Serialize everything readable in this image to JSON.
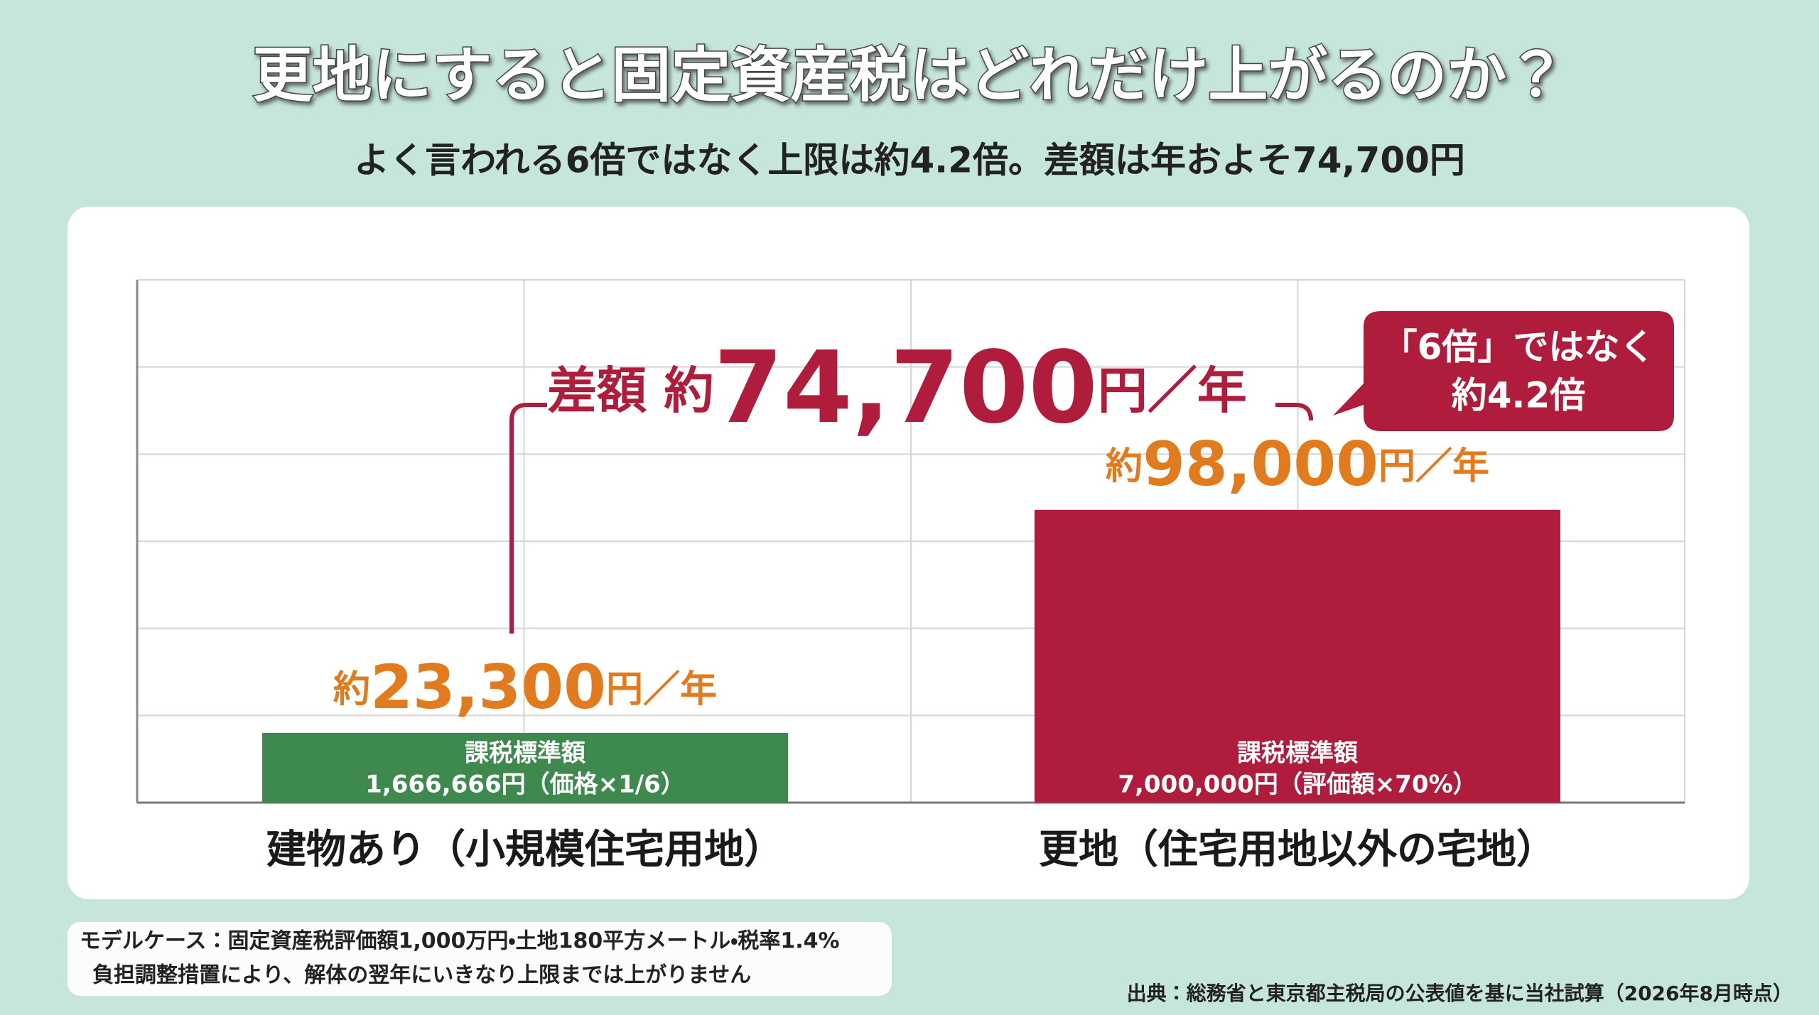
{
  "chart_data": {
    "type": "bar",
    "title": "更地にすると固定資産税はどれだけ上がるのか？",
    "subtitle": "よく言われる6倍ではなく上限は約4.2倍。差額は年およそ74,700円",
    "categories": [
      "建物あり（小規模住宅用地）",
      "更地（住宅用地以外の宅地）"
    ],
    "values": [
      23300,
      98000
    ],
    "value_labels": [
      "約23,300円／年",
      "約98,000円／年"
    ],
    "colors": [
      "#3e8a4e",
      "#b01c3c"
    ],
    "bar_labels": [
      [
        "課税標準額",
        "1,666,666円（価格×1/6）"
      ],
      [
        "課税標準額",
        "7,000,000円（評価額×70%）"
      ]
    ],
    "ylim": [
      0,
      175000
    ],
    "grid": true,
    "annotations": {
      "difference": "差額 約74,700円／年",
      "callout": [
        "「6倍」ではなく",
        "約4.2倍"
      ]
    },
    "notes": [
      "モデルケース：固定資産税評価額1,000万円・土地180平方メートル・税率1.4%",
      "負担調整措置により、解体の翌年にいきなり上限までは上がりません"
    ],
    "source": "出典：総務省と東京都主税局の公表値を基に当社試算（2026年8月時点）"
  }
}
